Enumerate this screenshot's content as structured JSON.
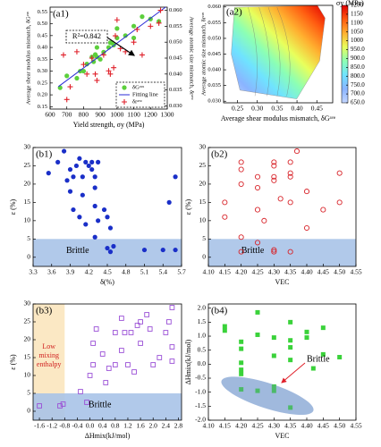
{
  "chart_data": [
    {
      "type": "scatter",
      "panel": "(a1)",
      "xlabel": "Yield strength, σy (MPa)",
      "ylabel": "Average shear modulus mismatch, δGᵃᵛᵉ",
      "y2label": "Average atomic size mismatch, δrᵃᵛᵉ",
      "xlim": [
        600,
        1300
      ],
      "xticks": [
        600,
        700,
        800,
        900,
        1000,
        1100,
        1200,
        1300
      ],
      "ylim": [
        0.14,
        0.57
      ],
      "yticks": [
        0.15,
        {
          "value": 0.2,
          "label": "0.20"
        },
        0.25,
        {
          "value": 0.3,
          "label": "0.30"
        },
        0.35,
        {
          "value": 0.4,
          "label": "0.40"
        },
        0.45,
        {
          "value": 0.5,
          "label": "0.50"
        },
        0.55
      ],
      "y2lim": [
        0.029,
        0.061
      ],
      "y2ticks": [
        {
          "value": 0.03,
          "label": "0.030"
        },
        0.035,
        {
          "value": 0.04,
          "label": "0.040"
        },
        0.045,
        {
          "value": 0.05,
          "label": "0.050"
        },
        0.055,
        {
          "value": 0.06,
          "label": "0.060"
        }
      ],
      "annotation": "R²=0.842",
      "legend": "lower right",
      "series": [
        {
          "name": "δGᵃᵛᵉ",
          "color": "#5ccf3c",
          "marker": "circle",
          "x": [
            660,
            700,
            760,
            780,
            800,
            820,
            850,
            860,
            870,
            880,
            880,
            900,
            920,
            950,
            960,
            970,
            980,
            1000,
            1000,
            1050,
            1100,
            1100,
            1150,
            1200,
            1250
          ],
          "values": [
            0.23,
            0.28,
            0.27,
            0.3,
            0.3,
            0.33,
            0.36,
            0.34,
            0.37,
            0.36,
            0.4,
            0.35,
            0.38,
            0.4,
            0.42,
            0.42,
            0.41,
            0.44,
            0.48,
            0.45,
            0.49,
            0.44,
            0.53,
            0.52,
            0.51
          ]
        },
        {
          "name": "Fitting line",
          "color": "#2b2bd6",
          "marker": "line",
          "x": [
            650,
            1290
          ],
          "values": [
            0.235,
            0.57
          ]
        },
        {
          "name": "δrᵃᵛᵉ",
          "color": "#e0202a",
          "marker": "plus",
          "axis": "y2",
          "x": [
            680,
            700,
            720,
            760,
            800,
            820,
            850,
            870,
            880,
            900,
            920,
            950,
            960,
            980,
            990,
            1000,
            1020,
            1050,
            1100,
            1120,
            1150,
            1200,
            1250,
            1260
          ],
          "values": [
            0.046,
            0.032,
            0.036,
            0.047,
            0.043,
            0.04,
            0.045,
            0.04,
            0.038,
            0.051,
            0.046,
            0.041,
            0.04,
            0.042,
            0.052,
            0.057,
            0.048,
            0.047,
            0.05,
            0.054,
            0.046,
            0.055,
            0.056,
            0.06
          ]
        }
      ]
    },
    {
      "type": "contour",
      "panel": "(a2)",
      "xlabel": "Average shear modulus mismatch, δGᵃᵛᵉ",
      "ylabel": "Average atomic size mismatch, δrᵃᵛᵉ",
      "xlim": [
        0.215,
        0.49
      ],
      "xticks": [
        0.25,
        {
          "value": 0.3,
          "label": "0.30"
        },
        0.35,
        {
          "value": 0.4,
          "label": "0.40"
        },
        0.45
      ],
      "ylim": [
        0.0295,
        0.0605
      ],
      "yticks": [
        {
          "value": 0.03,
          "label": "0.030"
        },
        0.035,
        {
          "value": 0.04,
          "label": "0.040"
        },
        0.045,
        {
          "value": 0.05,
          "label": "0.050"
        },
        0.055,
        {
          "value": 0.06,
          "label": "0.060"
        }
      ],
      "colorbar_label": "σy (MPa)",
      "clim": [
        650,
        1200
      ],
      "cticks": [
        {
          "value": 650,
          "label": "650.0"
        },
        {
          "value": 700,
          "label": "700.0"
        },
        {
          "value": 750,
          "label": "750.0"
        },
        {
          "value": 800,
          "label": "800.0"
        },
        {
          "value": 850,
          "label": "850.0"
        },
        {
          "value": 900,
          "label": "900.0"
        },
        {
          "value": 950,
          "label": "950.0"
        },
        1000,
        1050,
        1100,
        1150,
        1200
      ],
      "colormap": [
        "#c3d6ff",
        "#8ab4ff",
        "#6fe3ff",
        "#8cffb4",
        "#e8ff5c",
        "#ffb030",
        "#ff5a10",
        "#e00000"
      ]
    },
    {
      "type": "scatter",
      "panel": "(b1)",
      "xlabel": "δ(%)",
      "ylabel": "ε (%)",
      "xlim": [
        3.3,
        5.7
      ],
      "xticks": [
        3.3,
        3.6,
        3.9,
        4.2,
        4.5,
        4.8,
        5.1,
        5.4,
        5.7
      ],
      "ylim": [
        -2.5,
        30
      ],
      "yticks": [
        0,
        5,
        10,
        15,
        20,
        25,
        30
      ],
      "brittle_threshold": 5,
      "brittle_label": "Brittle",
      "band_color": "#a9c3e8",
      "series": [
        {
          "color": "#1a2fc8",
          "marker": "circle",
          "x": [
            3.55,
            3.7,
            3.8,
            3.85,
            3.9,
            3.9,
            3.95,
            4.0,
            4.05,
            4.1,
            4.1,
            4.15,
            4.2,
            4.25,
            4.25,
            4.3,
            4.3,
            4.35,
            3.95,
            4.05,
            4.15,
            4.3,
            4.35,
            4.45,
            4.5,
            4.55,
            4.6,
            4.55,
            4.3,
            5.5,
            5.6,
            5.4,
            5.6,
            5.1,
            4.5
          ],
          "values": [
            23,
            26,
            29,
            21,
            24,
            18,
            22,
            25,
            27,
            22,
            17,
            26,
            25,
            26,
            24,
            22,
            19,
            26,
            13,
            11,
            9,
            14,
            10,
            13,
            11,
            8,
            3,
            1.5,
            5.5,
            15,
            22,
            2,
            2,
            2,
            2.5
          ]
        }
      ]
    },
    {
      "type": "scatter",
      "panel": "(b2)",
      "xlabel": "VEC",
      "ylabel": "ε (%)",
      "xlim": [
        4.1,
        4.55
      ],
      "xticks": [
        {
          "value": 4.1,
          "label": "4.10"
        },
        4.15,
        {
          "value": 4.2,
          "label": "4.20"
        },
        4.25,
        {
          "value": 4.3,
          "label": "4.30"
        },
        4.35,
        {
          "value": 4.4,
          "label": "4.40"
        },
        4.45,
        {
          "value": 4.5,
          "label": "4.50"
        },
        4.55
      ],
      "ylim": [
        -2.5,
        30
      ],
      "yticks": [
        0,
        5,
        10,
        15,
        20,
        25,
        30
      ],
      "brittle_threshold": 5,
      "brittle_label": "Brittle",
      "band_color": "#a9c3e8",
      "series": [
        {
          "color": "#d8242a",
          "marker": "circle-open",
          "x": [
            4.15,
            4.15,
            4.2,
            4.2,
            4.2,
            4.2,
            4.2,
            4.25,
            4.25,
            4.25,
            4.25,
            4.3,
            4.3,
            4.3,
            4.3,
            4.3,
            4.3,
            4.35,
            4.35,
            4.35,
            4.35,
            4.35,
            4.37,
            4.4,
            4.4,
            4.45,
            4.5,
            4.5,
            4.32,
            4.27
          ],
          "values": [
            15,
            11,
            26,
            24,
            20,
            5.5,
            1.5,
            22,
            19,
            13,
            4,
            26,
            25,
            22,
            21,
            2,
            1.5,
            26,
            23,
            22,
            15,
            1.5,
            29,
            18,
            8,
            13,
            23,
            15,
            16,
            10
          ]
        }
      ]
    },
    {
      "type": "scatter",
      "panel": "(b3)",
      "xlabel": "ΔHmix(kJ/mol)",
      "ylabel": "ε (%)",
      "xlim": [
        -1.8,
        2.9
      ],
      "xticks": [
        -1.6,
        -1.2,
        -0.8,
        -0.4,
        {
          "value": 0,
          "label": "0.0"
        },
        0.4,
        0.8,
        1.2,
        1.6,
        {
          "value": 2,
          "label": "2.0"
        },
        2.4,
        2.8
      ],
      "ylim": [
        -2.5,
        30
      ],
      "yticks": [
        0,
        5,
        10,
        15,
        20,
        25,
        30
      ],
      "brittle_threshold": 5,
      "brittle_label": "Brittle",
      "band_color": "#a9c3e8",
      "enthalpy_threshold": -0.8,
      "enthalpy_label": [
        "Low",
        "mixing",
        "enthalpy"
      ],
      "enthalpy_color": "#fbe8c4",
      "series": [
        {
          "color": "#9a4fd6",
          "marker": "square-open",
          "x": [
            -1.6,
            -0.95,
            -0.85,
            -0.3,
            0.0,
            0.1,
            0.1,
            0.2,
            0.4,
            0.5,
            0.6,
            0.8,
            0.8,
            1.0,
            1.0,
            1.1,
            1.2,
            1.3,
            1.5,
            1.6,
            1.6,
            1.8,
            1.9,
            2.0,
            2.2,
            2.4,
            2.5,
            2.6,
            2.6,
            2.6,
            1.4,
            -0.1
          ],
          "values": [
            1.5,
            1.5,
            2,
            5.5,
            10,
            13,
            19,
            23,
            16,
            8,
            12,
            22,
            13,
            26,
            17,
            22,
            13,
            22,
            24,
            19,
            25,
            27,
            23,
            13,
            15,
            22,
            25,
            18,
            29,
            14,
            11,
            2.5
          ]
        }
      ]
    },
    {
      "type": "scatter",
      "panel": "(b4)",
      "xlabel": "VEC",
      "ylabel": "ΔHmix(kJ/mol)",
      "xlim": [
        4.1,
        4.55
      ],
      "xticks": [
        {
          "value": 4.1,
          "label": "4.10"
        },
        4.15,
        {
          "value": 4.2,
          "label": "4.20"
        },
        4.25,
        {
          "value": 4.3,
          "label": "4.30"
        },
        4.35,
        {
          "value": 4.4,
          "label": "4.40"
        },
        4.45,
        {
          "value": 4.5,
          "label": "4.50"
        },
        4.55
      ],
      "ylim": [
        -2.0,
        2.15
      ],
      "yticks": [
        {
          "value": -2,
          "label": "-2.0"
        },
        -1.5,
        {
          "value": -1,
          "label": "-1.0"
        },
        -0.5,
        {
          "value": 0,
          "label": "0.0"
        },
        0.5,
        {
          "value": 1,
          "label": "1.0"
        },
        1.5,
        {
          "value": 2,
          "label": "2.0"
        }
      ],
      "annotation": "Brittle",
      "series": [
        {
          "color": "#3ad23a",
          "marker": "square",
          "x": [
            4.15,
            4.15,
            4.2,
            4.2,
            4.2,
            4.2,
            4.2,
            4.2,
            4.25,
            4.25,
            4.3,
            4.3,
            4.3,
            4.3,
            4.35,
            4.35,
            4.35,
            4.35,
            4.35,
            4.4,
            4.4,
            4.42,
            4.45,
            4.45,
            4.5,
            4.25
          ],
          "values": [
            1.35,
            1.2,
            0.8,
            0.55,
            0.05,
            -0.2,
            -0.35,
            -0.9,
            1.85,
            1.05,
            0.3,
            -0.8,
            -0.95,
            0.95,
            0.85,
            0.6,
            0.15,
            1.5,
            -1.55,
            0.95,
            1.15,
            -0.15,
            0.35,
            1.3,
            0.25,
            -0.95
          ]
        }
      ]
    }
  ]
}
